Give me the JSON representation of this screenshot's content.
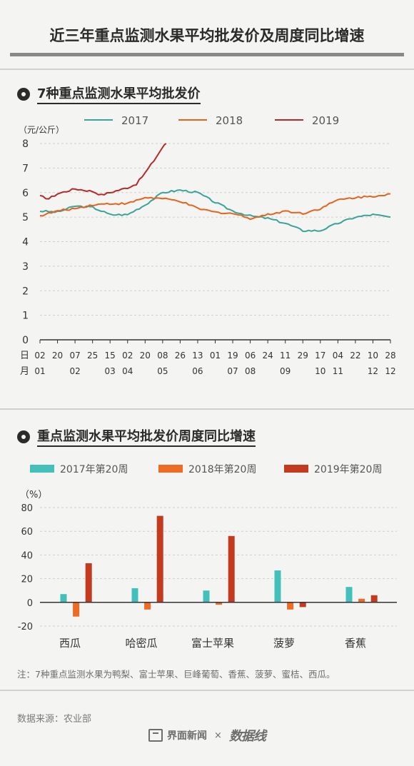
{
  "title": "近三年重点监测水果平均批发价及周度同比增速",
  "note": "注：7种重点监测水果为鸭梨、富士苹果、巨峰葡萄、香蕉、菠萝、蜜桔、西瓜。",
  "source": "数据来源：农业部",
  "footer": {
    "brand1": "界面新闻",
    "times": "×",
    "brand2": "数据线"
  },
  "colors": {
    "s2017": "#3aa39a",
    "s2018": "#e5631d",
    "s2019": "#b42a2a",
    "bar2017": "#42c0b9",
    "bar2018": "#ef6b24",
    "bar2019": "#c43a1f"
  },
  "chart_data": [
    {
      "type": "line",
      "title": "7种重点监测水果平均批发价",
      "ylabel": "（元/公斤）",
      "ylim": [
        0,
        8
      ],
      "yticks": [
        0,
        1,
        2,
        3,
        4,
        5,
        6,
        7,
        8
      ],
      "x_row1_label": "日",
      "x_row2_label": "月",
      "x_day_labels": [
        "02",
        "20",
        "07",
        "25",
        "15",
        "02",
        "20",
        "08",
        "26",
        "13",
        "01",
        "19",
        "06",
        "24",
        "11",
        "29",
        "17",
        "04",
        "22",
        "10",
        "28"
      ],
      "x_month_labels": [
        {
          "text": "01",
          "tick": 0
        },
        {
          "text": "02",
          "tick": 2
        },
        {
          "text": "03",
          "tick": 4
        },
        {
          "text": "04",
          "tick": 5
        },
        {
          "text": "05",
          "tick": 7
        },
        {
          "text": "06",
          "tick": 9
        },
        {
          "text": "07",
          "tick": 11
        },
        {
          "text": "08",
          "tick": 12
        },
        {
          "text": "09",
          "tick": 14
        },
        {
          "text": "10",
          "tick": 16
        },
        {
          "text": "11",
          "tick": 17
        },
        {
          "text": "12",
          "tick": 19
        },
        {
          "text": "12",
          "tick": 20
        }
      ],
      "series": [
        {
          "name": "2017",
          "points": [
            [
              0,
              5.25
            ],
            [
              1,
              5.2
            ],
            [
              2,
              5.45
            ],
            [
              3,
              5.4
            ],
            [
              4,
              5.1
            ],
            [
              5,
              5.1
            ],
            [
              6,
              5.5
            ],
            [
              7,
              6.0
            ],
            [
              8,
              6.1
            ],
            [
              9,
              6.0
            ],
            [
              10,
              5.6
            ],
            [
              11,
              5.25
            ],
            [
              12,
              5.05
            ],
            [
              13,
              4.95
            ],
            [
              14,
              4.75
            ],
            [
              15,
              4.45
            ],
            [
              16,
              4.45
            ],
            [
              17,
              4.75
            ],
            [
              18,
              5.0
            ],
            [
              19,
              5.1
            ],
            [
              20,
              5.0
            ]
          ]
        },
        {
          "name": "2018",
          "points": [
            [
              0,
              5.05
            ],
            [
              1,
              5.25
            ],
            [
              2,
              5.35
            ],
            [
              3,
              5.5
            ],
            [
              4,
              5.55
            ],
            [
              5,
              5.55
            ],
            [
              6,
              5.8
            ],
            [
              7,
              5.75
            ],
            [
              8,
              5.65
            ],
            [
              9,
              5.35
            ],
            [
              10,
              5.2
            ],
            [
              11,
              5.15
            ],
            [
              12,
              4.95
            ],
            [
              13,
              5.1
            ],
            [
              14,
              5.25
            ],
            [
              15,
              5.15
            ],
            [
              16,
              5.35
            ],
            [
              17,
              5.7
            ],
            [
              18,
              5.8
            ],
            [
              19,
              5.85
            ],
            [
              20,
              5.95
            ]
          ]
        },
        {
          "name": "2019",
          "points": [
            [
              0,
              5.85
            ],
            [
              0.5,
              5.75
            ],
            [
              1,
              5.95
            ],
            [
              1.5,
              6.05
            ],
            [
              2,
              6.15
            ],
            [
              2.5,
              6.1
            ],
            [
              3,
              6.05
            ],
            [
              3.5,
              5.9
            ],
            [
              4,
              6.0
            ],
            [
              4.5,
              6.1
            ],
            [
              5,
              6.2
            ],
            [
              5.5,
              6.35
            ],
            [
              6,
              6.8
            ],
            [
              6.5,
              7.3
            ],
            [
              7,
              7.85
            ],
            [
              7.2,
              8.0
            ]
          ]
        }
      ]
    },
    {
      "type": "bar",
      "title": "重点监测水果平均批发价周度同比增速",
      "ylabel": "（%）",
      "ylim": [
        -20,
        80
      ],
      "yticks": [
        -20,
        0,
        20,
        40,
        60,
        80
      ],
      "categories": [
        "西瓜",
        "哈密瓜",
        "富士苹果",
        "菠萝",
        "香蕉"
      ],
      "series": [
        {
          "name": "2017年第20周",
          "values": [
            7,
            12,
            10,
            27,
            13
          ]
        },
        {
          "name": "2018年第20周",
          "values": [
            -12,
            -6,
            -2,
            -6,
            3
          ]
        },
        {
          "name": "2019年第20周",
          "values": [
            33,
            73,
            56,
            -4,
            6
          ]
        }
      ]
    }
  ]
}
